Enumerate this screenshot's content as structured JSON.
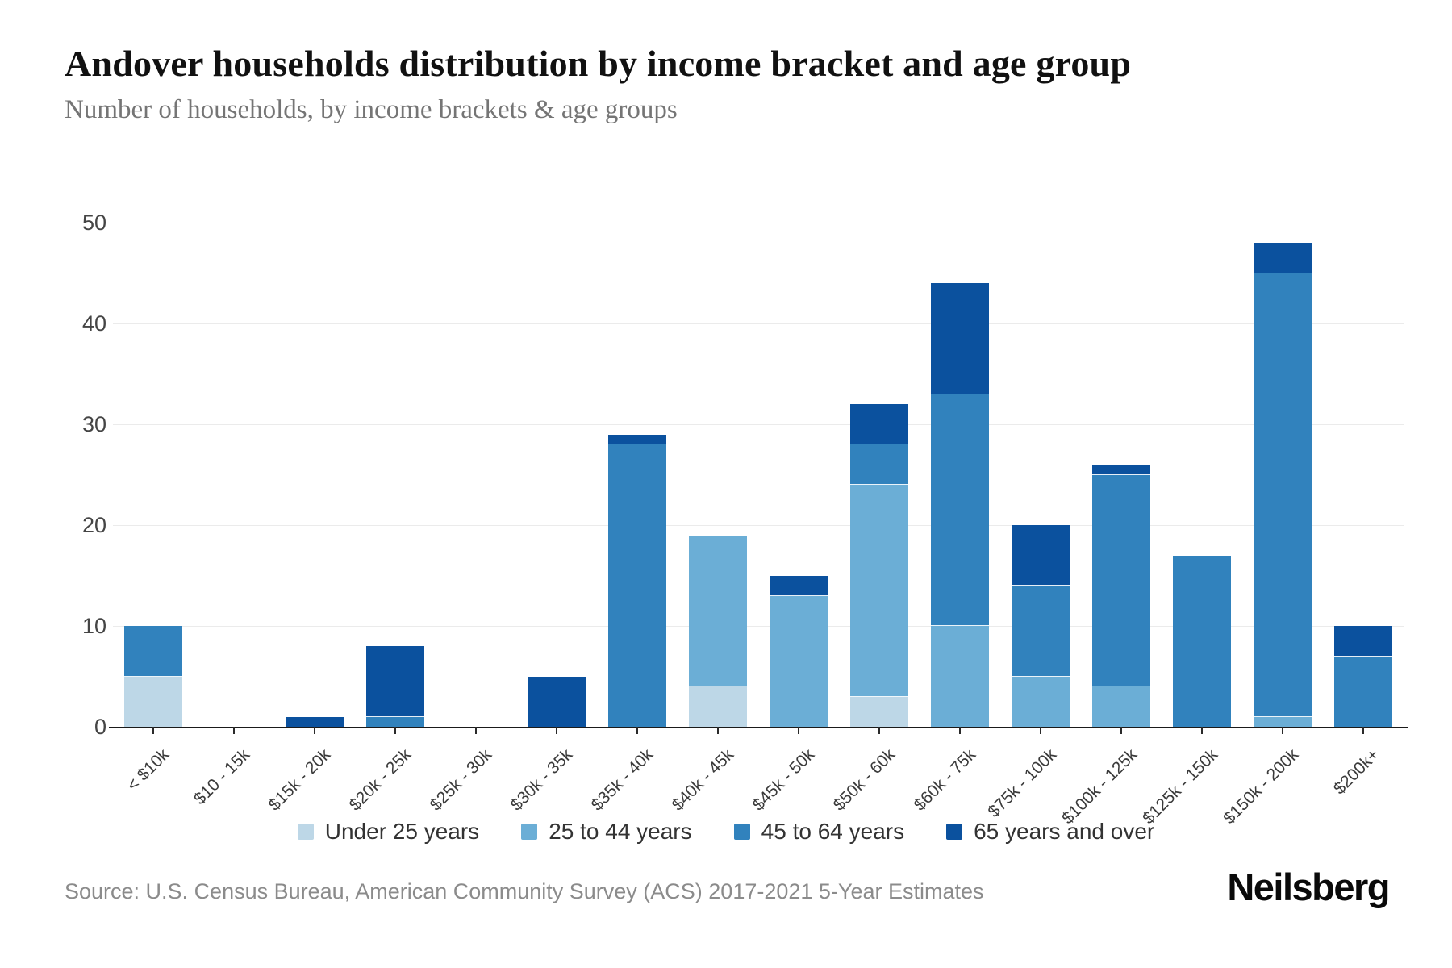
{
  "header": {
    "title": "Andover households distribution by income bracket and age group",
    "subtitle": "Number of households, by income brackets & age groups"
  },
  "chart_data": {
    "type": "bar",
    "stacked": true,
    "title": "Andover households distribution by income bracket and age group",
    "subtitle": "Number of households, by income brackets & age groups",
    "categories": [
      "< $10k",
      "$10 - 15k",
      "$15k - 20k",
      "$20k - 25k",
      "$25k - 30k",
      "$30k - 35k",
      "$35k - 40k",
      "$40k - 45k",
      "$45k - 50k",
      "$50k - 60k",
      "$60k - 75k",
      "$75k - 100k",
      "$100k - 125k",
      "$125k - 150k",
      "$150k - 200k",
      "$200k+"
    ],
    "series": [
      {
        "name": "Under 25 years",
        "color": "#bdd7e7",
        "values": [
          5,
          0,
          0,
          0,
          0,
          0,
          0,
          4,
          0,
          3,
          0,
          0,
          0,
          0,
          0,
          0
        ]
      },
      {
        "name": "25 to 44 years",
        "color": "#6baed6",
        "values": [
          0,
          0,
          0,
          0,
          0,
          0,
          0,
          15,
          13,
          21,
          10,
          5,
          4,
          0,
          1,
          0
        ]
      },
      {
        "name": "45 to 64 years",
        "color": "#3182bd",
        "values": [
          5,
          0,
          0,
          1,
          0,
          0,
          28,
          0,
          0,
          4,
          23,
          9,
          21,
          17,
          44,
          7
        ]
      },
      {
        "name": "65 years and over",
        "color": "#0b519e",
        "values": [
          0,
          0,
          1,
          7,
          0,
          5,
          1,
          0,
          2,
          4,
          11,
          6,
          1,
          0,
          3,
          3
        ]
      }
    ],
    "totals": [
      10,
      0,
      1,
      8,
      0,
      5,
      29,
      19,
      15,
      32,
      44,
      20,
      26,
      17,
      48,
      10
    ],
    "ylim": [
      0,
      50
    ],
    "yticks": [
      0,
      10,
      20,
      30,
      40,
      50
    ],
    "grid": "horizontal",
    "legend_position": "bottom-center"
  },
  "footer": {
    "source": "Source: U.S. Census Bureau, American Community Survey (ACS) 2017-2021 5-Year Estimates",
    "brand": "Neilsberg"
  }
}
